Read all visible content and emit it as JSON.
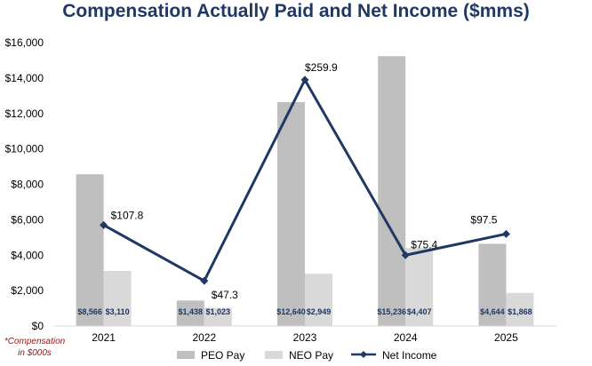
{
  "chart_data": {
    "type": "bar",
    "title": "Compensation Actually Paid and Net Income ($mms)",
    "categories": [
      "2021",
      "2022",
      "2023",
      "2024",
      "2025"
    ],
    "ylim": [
      0,
      16000
    ],
    "yticks": [
      0,
      2000,
      4000,
      6000,
      8000,
      10000,
      12000,
      14000,
      16000
    ],
    "ytick_labels": [
      "$0",
      "$2,000",
      "$4,000",
      "$6,000",
      "$8,000",
      "$10,000",
      "$12,000",
      "$14,000",
      "$16,000"
    ],
    "grid": false,
    "legend_position": "bottom",
    "series": [
      {
        "name": "PEO Pay",
        "kind": "bar",
        "color": "#bfbfbf",
        "values": [
          8566,
          1438,
          12640,
          15236,
          4644
        ],
        "labels": [
          "$8,566",
          "$1,438",
          "$12,640",
          "$15,236",
          "$4,644"
        ]
      },
      {
        "name": "NEO Pay",
        "kind": "bar",
        "color": "#d9d9d9",
        "values": [
          3110,
          1023,
          2949,
          4407,
          1868
        ],
        "labels": [
          "$3,110",
          "$1,023",
          "$2,949",
          "$4,407",
          "$1,868"
        ]
      },
      {
        "name": "Net Income",
        "kind": "line",
        "color": "#1f3864",
        "values": [
          107.8,
          47.3,
          259.9,
          75.4,
          97.5
        ],
        "labels": [
          "$107.8",
          "$47.3",
          "$259.9",
          "$75.4",
          "$97.5"
        ],
        "line_on_scale_values": [
          5700,
          2550,
          13900,
          4000,
          5200
        ]
      }
    ],
    "footnote": "*Compensation in $000s"
  }
}
